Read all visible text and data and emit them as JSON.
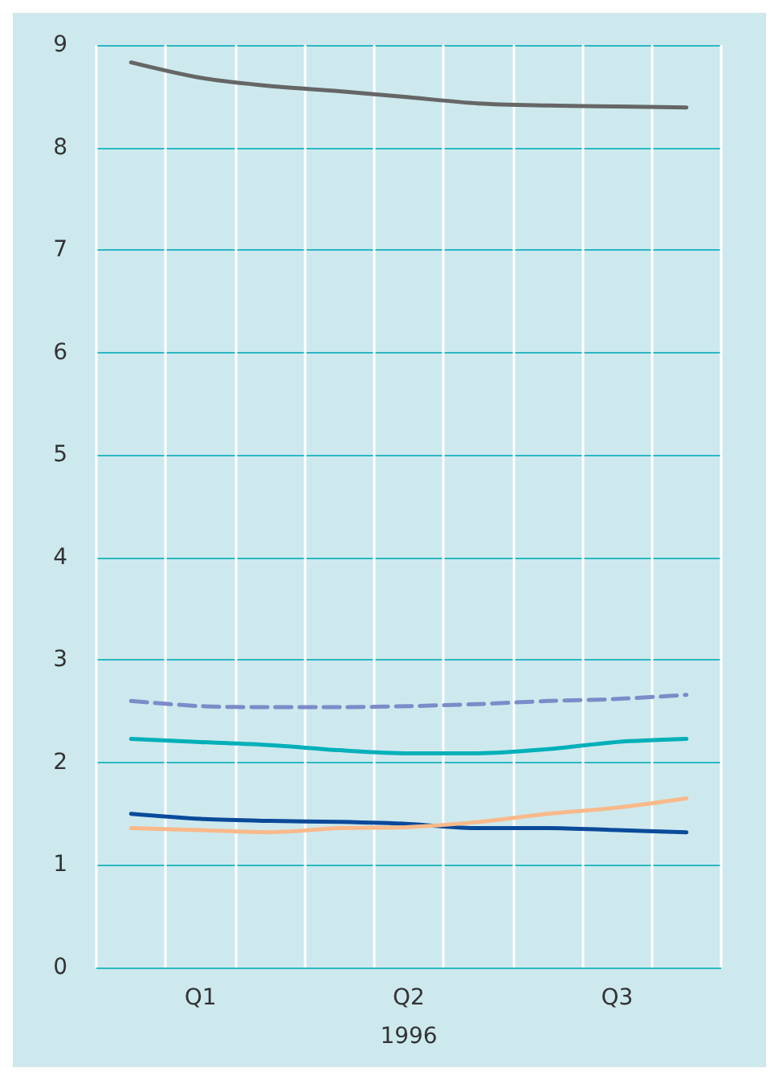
{
  "chart_data": {
    "type": "line",
    "xlabel": "1996",
    "categories": [
      null,
      "Q1",
      null,
      null,
      "Q2",
      null,
      null,
      "Q3",
      null
    ],
    "series": [
      {
        "color": "#666666",
        "values": [
          8.83,
          8.68,
          8.6,
          8.55,
          8.49,
          8.43,
          8.41,
          8.4,
          8.39
        ]
      },
      {
        "color": "#7b8cc8",
        "line_style": "dashed",
        "values": [
          2.6,
          2.55,
          2.54,
          2.54,
          2.55,
          2.57,
          2.6,
          2.62,
          2.66
        ]
      },
      {
        "color": "#00b0b9",
        "values": [
          2.23,
          2.2,
          2.17,
          2.12,
          2.09,
          2.09,
          2.13,
          2.2,
          2.23
        ]
      },
      {
        "color": "#0a4a9a",
        "values": [
          1.5,
          1.45,
          1.43,
          1.42,
          1.4,
          1.36,
          1.36,
          1.34,
          1.32
        ]
      },
      {
        "color": "#f9b98a",
        "values": [
          1.36,
          1.34,
          1.32,
          1.36,
          1.37,
          1.42,
          1.5,
          1.56,
          1.65
        ]
      }
    ],
    "ylim": [
      0,
      9
    ],
    "yticks": [
      0,
      1,
      2,
      3,
      4,
      5,
      6,
      7,
      8,
      9
    ],
    "grid": true,
    "marker": "none",
    "line_style": "solid"
  }
}
